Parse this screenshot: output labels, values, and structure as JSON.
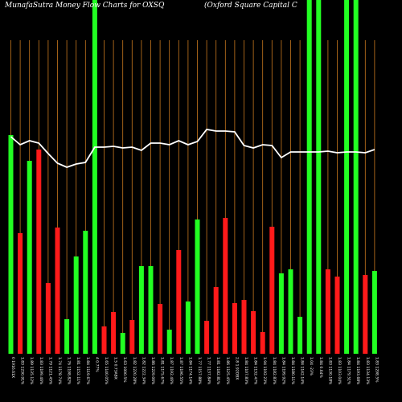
{
  "chart_data": {
    "type": "bar",
    "title_left": "MunafaSutra  Money Flow  Charts for OXSQ",
    "title_right": "(Oxford Square   Capital C",
    "colors": {
      "background": "#000000",
      "up": "#22ff22",
      "down": "#ff1a1a",
      "grid": "#c8781e",
      "line": "#ffffff",
      "text": "#ffffff"
    },
    "categories": [
      "0  1916.61X",
      "1.83 1230.91%",
      "1.89 1135.12%",
      "1.83 1199.46%",
      "1.79 1121.45%",
      "1.74  1178.74%",
      "1.76  1198.82%",
      "1.81 1152.11%",
      "1.84 1119.67%",
      "4   0.77%",
      "1.65 1140.05%",
      "1.5  0.73ABX",
      "1.63 1000.5%",
      "1.82 1220.28%",
      "1.82 1222.34%",
      "1.86 1229.06%",
      "1.81 1175.67%",
      "1.87 1192.46%",
      "1.87 1196.55%",
      "1.84 1174.14%",
      "1.77 1157.88%",
      "1.77 1137.84%",
      "1.81 1182.81%",
      "1.86 1125.45%",
      "2.8  1.92OBX",
      "1.84 1107.83%",
      "1.84 1132.47%",
      "1.94 1192.23%",
      "1.84 1182.83%",
      "1.84 1199.92%",
      "1.84 1180.11%",
      "1.84 1142.14%",
      "1.04  -23%",
      "1.84  0.64%",
      "1.83 1130.18%",
      "1.83 1103.04%",
      "1.84 1179.51%",
      "1.84 1193.68%",
      "1.83 1134.13%",
      "1.83 1298.5%"
    ],
    "bars": [
      {
        "h": 272,
        "dir": "up"
      },
      {
        "h": 150,
        "dir": "down"
      },
      {
        "h": 240,
        "dir": "up"
      },
      {
        "h": 254,
        "dir": "down"
      },
      {
        "h": 88,
        "dir": "down"
      },
      {
        "h": 157,
        "dir": "down"
      },
      {
        "h": 43,
        "dir": "up"
      },
      {
        "h": 121,
        "dir": "up"
      },
      {
        "h": 153,
        "dir": "up"
      },
      {
        "h": 440,
        "dir": "up"
      },
      {
        "h": 34,
        "dir": "down"
      },
      {
        "h": 52,
        "dir": "down"
      },
      {
        "h": 26,
        "dir": "up"
      },
      {
        "h": 42,
        "dir": "down"
      },
      {
        "h": 109,
        "dir": "up"
      },
      {
        "h": 109,
        "dir": "up"
      },
      {
        "h": 62,
        "dir": "down"
      },
      {
        "h": 30,
        "dir": "up"
      },
      {
        "h": 129,
        "dir": "down"
      },
      {
        "h": 65,
        "dir": "up"
      },
      {
        "h": 167,
        "dir": "up"
      },
      {
        "h": 41,
        "dir": "down"
      },
      {
        "h": 83,
        "dir": "down"
      },
      {
        "h": 169,
        "dir": "down"
      },
      {
        "h": 63,
        "dir": "down"
      },
      {
        "h": 67,
        "dir": "down"
      },
      {
        "h": 53,
        "dir": "down"
      },
      {
        "h": 27,
        "dir": "down"
      },
      {
        "h": 158,
        "dir": "down"
      },
      {
        "h": 100,
        "dir": "up"
      },
      {
        "h": 105,
        "dir": "up"
      },
      {
        "h": 46,
        "dir": "up"
      },
      {
        "h": 440,
        "dir": "up"
      },
      {
        "h": 440,
        "dir": "up"
      },
      {
        "h": 105,
        "dir": "down"
      },
      {
        "h": 96,
        "dir": "down"
      },
      {
        "h": 440,
        "dir": "up"
      },
      {
        "h": 440,
        "dir": "up"
      },
      {
        "h": 98,
        "dir": "down"
      },
      {
        "h": 103,
        "dir": "up"
      }
    ],
    "price_line": [
      270,
      260,
      265,
      262,
      249,
      237,
      232,
      236,
      238,
      257,
      257,
      258,
      256,
      257,
      253,
      262,
      262,
      260,
      265,
      260,
      264,
      279,
      277,
      277,
      276,
      259,
      256,
      260,
      259,
      244,
      251,
      251,
      251,
      251,
      252,
      250,
      251,
      251,
      250,
      254
    ],
    "grid": "vertical"
  }
}
